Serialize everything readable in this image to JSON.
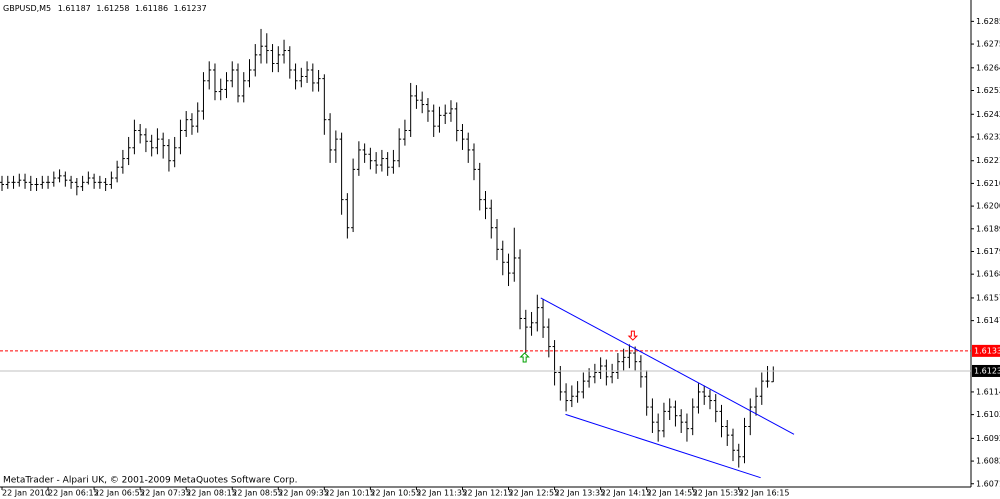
{
  "chart_data": {
    "type": "ohlc",
    "title": "GBPUSD,M5",
    "footer": "MetaTrader - Alpari UK, © 2001-2009 MetaQuotes Software Corp.",
    "color": "#000000",
    "xlim": [
      -0.35,
      168.35
    ],
    "ylim": [
      1.607,
      1.6294
    ],
    "xticks": [
      {
        "value": 0,
        "label": "22 Jan 2010"
      },
      {
        "value": 8,
        "label": "22 Jan 06:15"
      },
      {
        "value": 16,
        "label": "22 Jan 06:55"
      },
      {
        "value": 24,
        "label": "22 Jan 07:35"
      },
      {
        "value": 32,
        "label": "22 Jan 08:15"
      },
      {
        "value": 40,
        "label": "22 Jan 08:55"
      },
      {
        "value": 48,
        "label": "22 Jan 09:35"
      },
      {
        "value": 56,
        "label": "22 Jan 10:15"
      },
      {
        "value": 64,
        "label": "22 Jan 10:55"
      },
      {
        "value": 72,
        "label": "22 Jan 11:35"
      },
      {
        "value": 80,
        "label": "22 Jan 12:15"
      },
      {
        "value": 88,
        "label": "22 Jan 12:55"
      },
      {
        "value": 96,
        "label": "22 Jan 13:35"
      },
      {
        "value": 104,
        "label": "22 Jan 14:15"
      },
      {
        "value": 112,
        "label": "22 Jan 14:55"
      },
      {
        "value": 120,
        "label": "22 Jan 15:35"
      },
      {
        "value": 128,
        "label": "22 Jan 16:15"
      }
    ],
    "yticks": [
      1.62855,
      {
        "value": 1.6275,
        "label": "1.62750"
      },
      {
        "value": 1.6264,
        "label": "1.62640"
      },
      1.62535,
      1.62425,
      {
        "value": 1.6232,
        "label": "1.62320"
      },
      {
        "value": 1.6221,
        "label": "1.62210"
      },
      1.62105,
      {
        "value": 1.62,
        "label": "1.62000"
      },
      1.61895,
      {
        "value": 1.6179,
        "label": "1.61790"
      },
      1.61685,
      1.61575,
      {
        "value": 1.6147,
        "label": "1.61470"
      },
      {
        "value": 1.6114,
        "label": "1.61140"
      },
      1.61035,
      1.60925,
      {
        "value": 1.6082,
        "label": "1.60820"
      },
      1.60715
    ],
    "alert_line": {
      "value": 1.6133,
      "label": "1.6133",
      "color": "#ff0000"
    },
    "price_line_color": "#c0c0c0",
    "trendlines": [
      {
        "color": "#0000ff",
        "points": [
          [
            93.6,
            1.61575
          ],
          [
            137.6,
            1.60944
          ]
        ]
      },
      {
        "color": "#0000ff",
        "points": [
          [
            97.9,
            1.61036
          ],
          [
            131.8,
            1.60743
          ]
        ]
      }
    ],
    "arrows": [
      {
        "x": 90.8,
        "price": 1.6132,
        "direction": "up",
        "color": "#00a000"
      },
      {
        "x": 109.6,
        "price": 1.6138,
        "direction": "down",
        "color": "#ff0000"
      }
    ],
    "open": [
      1.6211,
      1.621,
      1.6211,
      1.6211,
      1.6212,
      1.6211,
      1.621,
      1.621,
      1.6211,
      1.6211,
      1.6213,
      1.6214,
      1.6212,
      1.6211,
      1.6209,
      1.6211,
      1.6213,
      1.6211,
      1.6211,
      1.621,
      1.6213,
      1.6218,
      1.6222,
      1.6227,
      1.6235,
      1.6233,
      1.623,
      1.6227,
      1.6231,
      1.6228,
      1.6221,
      1.6227,
      1.6235,
      1.624,
      1.6237,
      1.6244,
      1.6258,
      1.6263,
      1.6253,
      1.6254,
      1.6258,
      1.6263,
      1.6251,
      1.6258,
      1.6263,
      1.627,
      1.6274,
      1.6272,
      1.6266,
      1.627,
      1.6272,
      1.6263,
      1.6258,
      1.626,
      1.6263,
      1.6257,
      1.6259,
      1.624,
      1.6226,
      1.6231,
      1.6203,
      1.619,
      1.6217,
      1.6226,
      1.6224,
      1.6221,
      1.6219,
      1.6222,
      1.6218,
      1.6221,
      1.6231,
      1.6235,
      1.6251,
      1.6249,
      1.6247,
      1.6244,
      1.6237,
      1.6242,
      1.6243,
      1.6245,
      1.6235,
      1.6231,
      1.6226,
      1.6217,
      1.6203,
      1.6199,
      1.619,
      1.618,
      1.6174,
      1.6169,
      1.6176,
      1.6148,
      1.6144,
      1.6146,
      1.6153,
      1.6144,
      1.6135,
      1.6123,
      1.6114,
      1.611,
      1.6112,
      1.6114,
      1.6119,
      1.6121,
      1.6123,
      1.6126,
      1.6121,
      1.6123,
      1.6128,
      1.613,
      1.6132,
      1.6128,
      1.6121,
      1.6107,
      1.61,
      1.6096,
      1.6105,
      1.6107,
      1.6103,
      1.61,
      1.6097,
      1.6107,
      1.6114,
      1.6112,
      1.611,
      1.6105,
      1.6098,
      1.6094,
      1.6087,
      1.6084,
      1.6098,
      1.6107,
      1.6112,
      1.6119,
      1.61187
    ],
    "high": [
      1.6214,
      1.6214,
      1.6214,
      1.6215,
      1.6215,
      1.6214,
      1.6213,
      1.6214,
      1.6214,
      1.6216,
      1.6217,
      1.6216,
      1.6214,
      1.6213,
      1.6214,
      1.6216,
      1.6215,
      1.6214,
      1.6213,
      1.6216,
      1.6221,
      1.6226,
      1.6232,
      1.624,
      1.6238,
      1.6236,
      1.6233,
      1.6236,
      1.6234,
      1.6231,
      1.6232,
      1.624,
      1.6244,
      1.6243,
      1.6248,
      1.6262,
      1.6267,
      1.6266,
      1.6259,
      1.6262,
      1.6267,
      1.6266,
      1.6262,
      1.6268,
      1.6275,
      1.6282,
      1.628,
      1.6275,
      1.6274,
      1.6277,
      1.6274,
      1.6266,
      1.6264,
      1.6267,
      1.6266,
      1.6263,
      1.6261,
      1.6243,
      1.6235,
      1.6234,
      1.6206,
      1.6222,
      1.623,
      1.6229,
      1.6227,
      1.6225,
      1.6226,
      1.6225,
      1.6226,
      1.6236,
      1.624,
      1.6257,
      1.6256,
      1.6253,
      1.625,
      1.6247,
      1.6246,
      1.6247,
      1.6249,
      1.6248,
      1.6238,
      1.6234,
      1.6229,
      1.622,
      1.6207,
      1.6203,
      1.6194,
      1.6184,
      1.6178,
      1.619,
      1.618,
      1.6152,
      1.6151,
      1.6159,
      1.6157,
      1.6148,
      1.6138,
      1.6126,
      1.6118,
      1.6117,
      1.6119,
      1.6123,
      1.6125,
      1.6127,
      1.613,
      1.6129,
      1.6127,
      1.6132,
      1.6134,
      1.6136,
      1.6135,
      1.6131,
      1.6124,
      1.6111,
      1.6104,
      1.6109,
      1.6111,
      1.611,
      1.6106,
      1.6104,
      1.6111,
      1.6118,
      1.6117,
      1.6115,
      1.6113,
      1.6108,
      1.6101,
      1.6097,
      1.609,
      1.6102,
      1.6111,
      1.6116,
      1.6123,
      1.6126,
      1.61258
    ],
    "low": [
      1.6207,
      1.6208,
      1.6208,
      1.6209,
      1.6208,
      1.6207,
      1.6207,
      1.6208,
      1.6208,
      1.6209,
      1.6211,
      1.6209,
      1.6208,
      1.6205,
      1.6207,
      1.621,
      1.6208,
      1.6208,
      1.6207,
      1.6208,
      1.6211,
      1.6215,
      1.6219,
      1.6224,
      1.6229,
      1.6225,
      1.6223,
      1.6224,
      1.6222,
      1.6216,
      1.6218,
      1.6224,
      1.6232,
      1.6233,
      1.6234,
      1.624,
      1.6254,
      1.6249,
      1.6249,
      1.625,
      1.6255,
      1.6248,
      1.6248,
      1.6255,
      1.626,
      1.6266,
      1.6266,
      1.6262,
      1.6262,
      1.6266,
      1.6259,
      1.6254,
      1.6255,
      1.6257,
      1.6253,
      1.6253,
      1.6233,
      1.622,
      1.622,
      1.6196,
      1.6185,
      1.6188,
      1.6214,
      1.622,
      1.6217,
      1.6215,
      1.6216,
      1.6214,
      1.6215,
      1.6218,
      1.6228,
      1.6232,
      1.6245,
      1.6243,
      1.6239,
      1.6232,
      1.6234,
      1.6238,
      1.6239,
      1.623,
      1.6226,
      1.622,
      1.6212,
      1.6198,
      1.6194,
      1.6185,
      1.6175,
      1.6168,
      1.6163,
      1.6165,
      1.6143,
      1.6132,
      1.614,
      1.6142,
      1.6139,
      1.613,
      1.6117,
      1.611,
      1.6105,
      1.6107,
      1.6109,
      1.6111,
      1.6116,
      1.6118,
      1.612,
      1.6117,
      1.6118,
      1.612,
      1.6124,
      1.6125,
      1.6124,
      1.6116,
      1.6103,
      1.6095,
      1.6091,
      1.6093,
      1.6101,
      1.6098,
      1.6095,
      1.6091,
      1.6094,
      1.6104,
      1.6108,
      1.6106,
      1.61,
      1.6093,
      1.6089,
      1.6082,
      1.6079,
      1.6081,
      1.6094,
      1.6103,
      1.6108,
      1.6116,
      1.61186
    ],
    "close": [
      1.621,
      1.6211,
      1.6211,
      1.6212,
      1.6211,
      1.621,
      1.621,
      1.6211,
      1.6211,
      1.6213,
      1.6214,
      1.6212,
      1.6211,
      1.6209,
      1.6211,
      1.6213,
      1.6211,
      1.6211,
      1.621,
      1.6213,
      1.6218,
      1.6222,
      1.6227,
      1.6235,
      1.6233,
      1.623,
      1.6227,
      1.6231,
      1.6228,
      1.6221,
      1.6227,
      1.6235,
      1.624,
      1.6237,
      1.6244,
      1.6258,
      1.6263,
      1.6253,
      1.6254,
      1.6258,
      1.6263,
      1.6251,
      1.6258,
      1.6263,
      1.627,
      1.6274,
      1.6272,
      1.6266,
      1.627,
      1.6272,
      1.6263,
      1.6258,
      1.626,
      1.6263,
      1.6257,
      1.6259,
      1.624,
      1.6226,
      1.6231,
      1.6203,
      1.619,
      1.6217,
      1.6226,
      1.6224,
      1.6221,
      1.6219,
      1.6222,
      1.6218,
      1.6221,
      1.6231,
      1.6235,
      1.6251,
      1.6249,
      1.6247,
      1.6244,
      1.6237,
      1.6242,
      1.6243,
      1.6245,
      1.6235,
      1.6231,
      1.6226,
      1.6217,
      1.6203,
      1.6199,
      1.619,
      1.618,
      1.6174,
      1.6169,
      1.6176,
      1.6148,
      1.6144,
      1.6146,
      1.6153,
      1.6144,
      1.6135,
      1.6123,
      1.6114,
      1.611,
      1.6112,
      1.6114,
      1.6119,
      1.6121,
      1.6123,
      1.6126,
      1.6121,
      1.6123,
      1.6128,
      1.613,
      1.6132,
      1.6128,
      1.6121,
      1.6107,
      1.61,
      1.6096,
      1.6105,
      1.6107,
      1.6103,
      1.61,
      1.6097,
      1.6107,
      1.6114,
      1.6112,
      1.611,
      1.6105,
      1.6098,
      1.6094,
      1.6087,
      1.6084,
      1.6098,
      1.6107,
      1.6112,
      1.6119,
      1.6119,
      1.61237
    ]
  }
}
